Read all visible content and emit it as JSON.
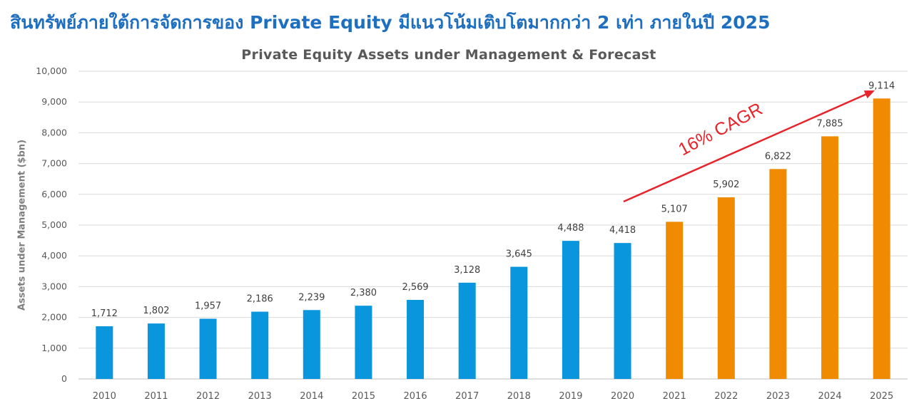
{
  "headline": "สินทรัพย์ภายใต้การจัดการของ Private Equity มีแนวโน้มเติบโตมากกว่า 2 เท่า ภายในปี 2025",
  "chart_data": {
    "type": "bar",
    "title": "Private Equity Assets under Management & Forecast",
    "xlabel": "",
    "ylabel": "Assets under Management ($bn)",
    "ylim": [
      0,
      10000
    ],
    "yticks": [
      "0",
      "1,000",
      "2,000",
      "3,000",
      "4,000",
      "5,000",
      "6,000",
      "7,000",
      "8,000",
      "9,000",
      "10,000"
    ],
    "grid": true,
    "categories": [
      "2010",
      "2011",
      "2012",
      "2013",
      "2014",
      "2015",
      "2016",
      "2017",
      "2018",
      "2019",
      "2020",
      "2021",
      "2022",
      "2023",
      "2024",
      "2025"
    ],
    "values": [
      1712,
      1802,
      1957,
      2186,
      2239,
      2380,
      2569,
      3128,
      3645,
      4488,
      4418,
      5107,
      5902,
      6822,
      7885,
      9114
    ],
    "value_labels": [
      "1,712",
      "1,802",
      "1,957",
      "2,186",
      "2,239",
      "2,380",
      "2,569",
      "3,128",
      "3,645",
      "4,488",
      "4,418",
      "5,107",
      "5,902",
      "6,822",
      "7,885",
      "9,114"
    ],
    "bar_colors": {
      "actual": "#0a96dd",
      "forecast": "#f08a00"
    },
    "forecast_start_index": 11,
    "annotation": {
      "text": "16% CAGR",
      "color": "#e8232a"
    }
  }
}
